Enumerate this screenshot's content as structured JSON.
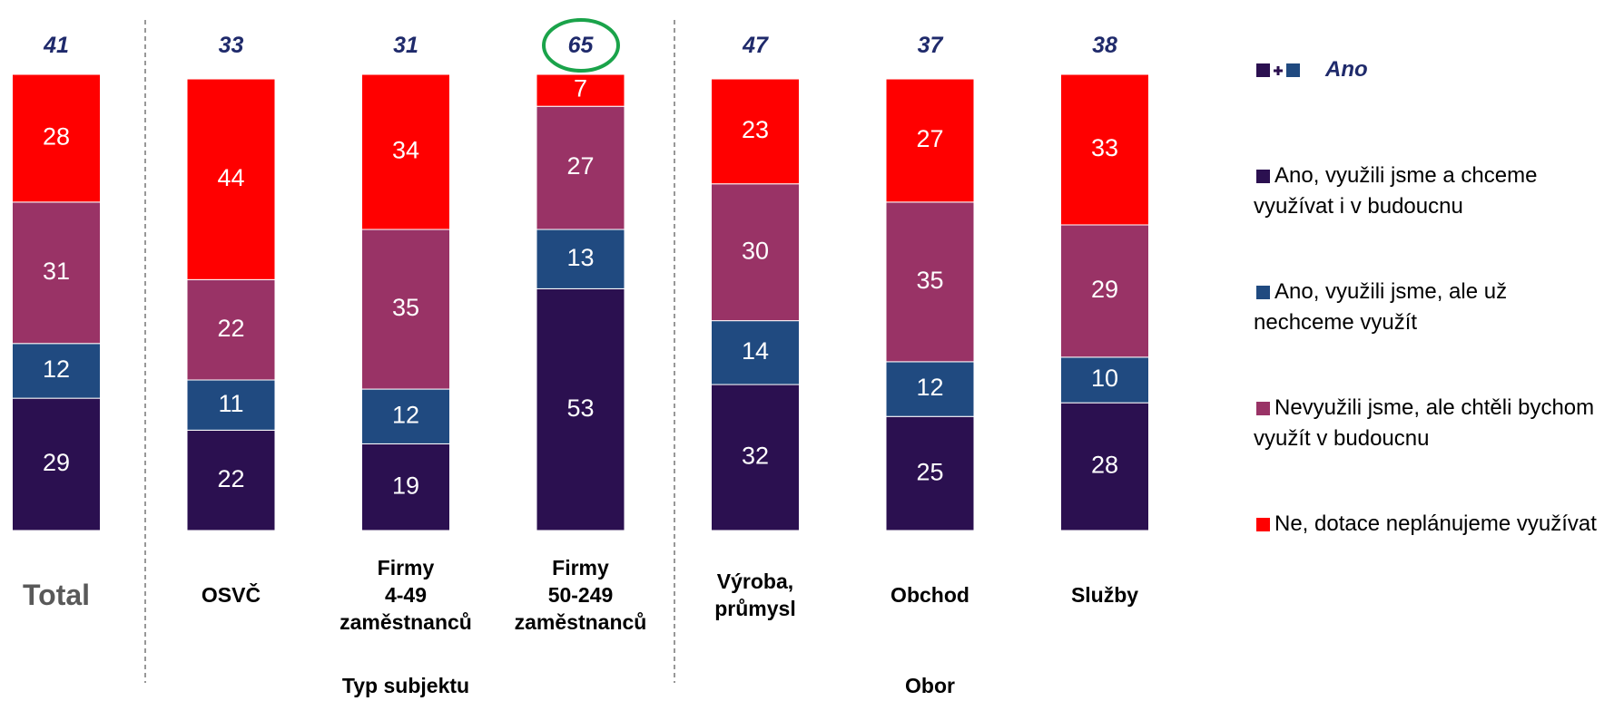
{
  "chart_data": {
    "type": "stacked_bar",
    "categories": [
      "Total",
      "OSVČ",
      "Firmy\n4-49\nzaměstnanců",
      "Firmy\n50-249\nzaměstnanců",
      "Výroba,\nprůmysl",
      "Obchod",
      "Služby"
    ],
    "groups": [
      {
        "label": "Typ subjektu",
        "from": 1,
        "to": 3
      },
      {
        "label": "Obor",
        "from": 4,
        "to": 6
      }
    ],
    "totals": {
      "name": "Ano",
      "values": [
        41,
        33,
        31,
        65,
        47,
        37,
        38
      ]
    },
    "series": [
      {
        "name": "Ano, využili jsme a chceme využívat i v budoucnu",
        "color": "#2b1050",
        "values": [
          29,
          22,
          19,
          53,
          32,
          25,
          28
        ]
      },
      {
        "name": "Ano, využili jsme, ale už nechceme využít",
        "color": "#204a80",
        "values": [
          12,
          11,
          12,
          13,
          14,
          12,
          10
        ]
      },
      {
        "name": "Nevyužili jsme, ale chtěli bychom využít v budoucnu",
        "color": "#993366",
        "values": [
          31,
          22,
          35,
          27,
          30,
          35,
          29
        ]
      },
      {
        "name": "Ne, dotace neplánujeme využívat",
        "color": "#ff0000",
        "values": [
          28,
          44,
          34,
          7,
          23,
          27,
          33
        ]
      }
    ],
    "ylim": [
      0,
      100
    ]
  }
}
